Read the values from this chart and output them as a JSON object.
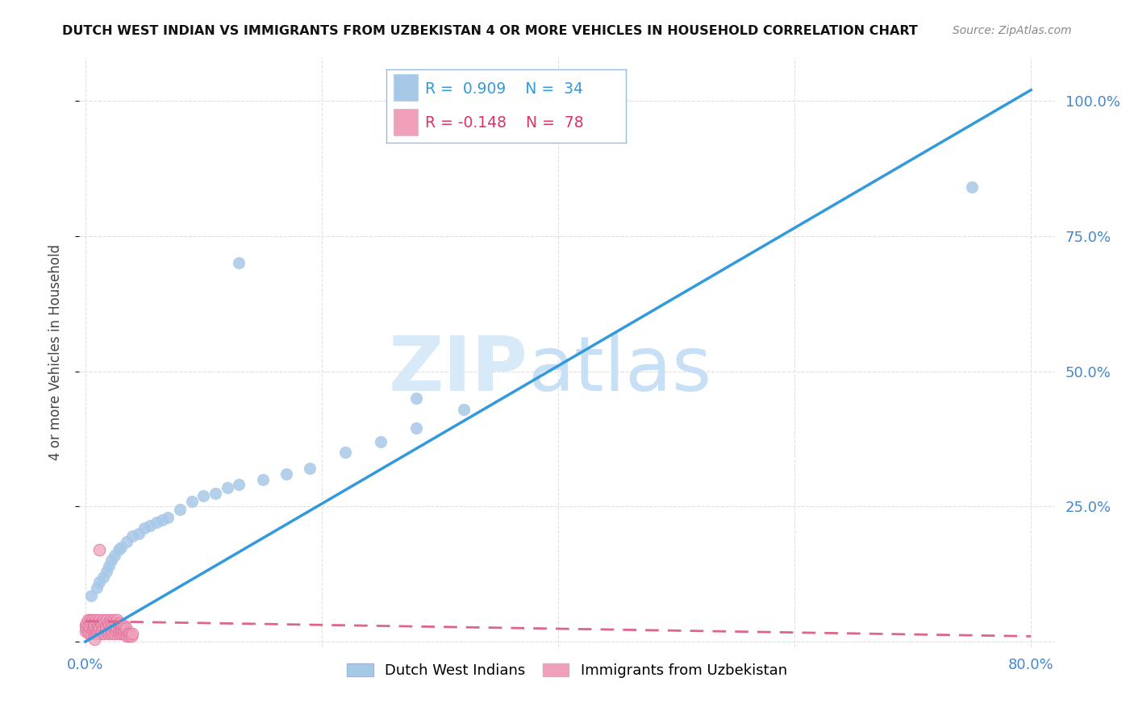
{
  "title": "DUTCH WEST INDIAN VS IMMIGRANTS FROM UZBEKISTAN 4 OR MORE VEHICLES IN HOUSEHOLD CORRELATION CHART",
  "source": "Source: ZipAtlas.com",
  "ylabel": "4 or more Vehicles in Household",
  "xlim": [
    0.0,
    0.8
  ],
  "ylim": [
    -0.01,
    1.08
  ],
  "blue_label": "Dutch West Indians",
  "pink_label": "Immigrants from Uzbekistan",
  "blue_R": 0.909,
  "blue_N": 34,
  "pink_R": -0.148,
  "pink_N": 78,
  "blue_color": "#a8c8e8",
  "blue_line_color": "#3399dd",
  "pink_color": "#f0a0b8",
  "pink_line_color": "#dd6688",
  "background_color": "#ffffff",
  "grid_color": "#dddddd",
  "tick_color": "#4488cc",
  "blue_x": [
    0.005,
    0.01,
    0.012,
    0.015,
    0.018,
    0.02,
    0.022,
    0.025,
    0.028,
    0.03,
    0.035,
    0.04,
    0.045,
    0.05,
    0.055,
    0.06,
    0.065,
    0.07,
    0.08,
    0.09,
    0.1,
    0.11,
    0.12,
    0.13,
    0.15,
    0.17,
    0.19,
    0.22,
    0.25,
    0.28,
    0.32,
    0.28,
    0.13,
    0.75
  ],
  "blue_y": [
    0.085,
    0.1,
    0.11,
    0.12,
    0.13,
    0.14,
    0.15,
    0.16,
    0.17,
    0.175,
    0.185,
    0.195,
    0.2,
    0.21,
    0.215,
    0.22,
    0.225,
    0.23,
    0.245,
    0.26,
    0.27,
    0.275,
    0.285,
    0.29,
    0.3,
    0.31,
    0.32,
    0.35,
    0.37,
    0.395,
    0.43,
    0.45,
    0.7,
    0.84
  ],
  "pink_x": [
    0.0,
    0.0,
    0.001,
    0.001,
    0.002,
    0.002,
    0.003,
    0.003,
    0.004,
    0.004,
    0.005,
    0.005,
    0.006,
    0.006,
    0.007,
    0.007,
    0.008,
    0.008,
    0.009,
    0.009,
    0.01,
    0.01,
    0.011,
    0.011,
    0.012,
    0.012,
    0.013,
    0.013,
    0.014,
    0.014,
    0.015,
    0.015,
    0.016,
    0.016,
    0.017,
    0.017,
    0.018,
    0.018,
    0.019,
    0.019,
    0.02,
    0.02,
    0.021,
    0.021,
    0.022,
    0.022,
    0.023,
    0.023,
    0.024,
    0.024,
    0.025,
    0.025,
    0.026,
    0.026,
    0.027,
    0.027,
    0.028,
    0.028,
    0.029,
    0.029,
    0.03,
    0.03,
    0.031,
    0.031,
    0.032,
    0.032,
    0.033,
    0.033,
    0.034,
    0.034,
    0.035,
    0.036,
    0.037,
    0.038,
    0.039,
    0.04,
    0.012,
    0.008
  ],
  "pink_y": [
    0.02,
    0.03,
    0.025,
    0.035,
    0.02,
    0.04,
    0.015,
    0.03,
    0.025,
    0.04,
    0.015,
    0.035,
    0.02,
    0.04,
    0.025,
    0.035,
    0.015,
    0.03,
    0.02,
    0.04,
    0.015,
    0.035,
    0.02,
    0.03,
    0.025,
    0.04,
    0.015,
    0.035,
    0.02,
    0.03,
    0.025,
    0.04,
    0.015,
    0.035,
    0.02,
    0.03,
    0.025,
    0.04,
    0.015,
    0.035,
    0.02,
    0.03,
    0.025,
    0.04,
    0.015,
    0.035,
    0.02,
    0.03,
    0.025,
    0.04,
    0.015,
    0.035,
    0.02,
    0.03,
    0.025,
    0.04,
    0.015,
    0.03,
    0.02,
    0.035,
    0.015,
    0.025,
    0.02,
    0.03,
    0.015,
    0.025,
    0.02,
    0.03,
    0.015,
    0.025,
    0.01,
    0.015,
    0.01,
    0.015,
    0.01,
    0.015,
    0.17,
    0.005
  ],
  "blue_line_x": [
    0.0,
    0.8
  ],
  "blue_line_y": [
    0.0,
    1.02
  ],
  "pink_line_x": [
    0.0,
    0.8
  ],
  "pink_line_y": [
    0.038,
    0.01
  ]
}
